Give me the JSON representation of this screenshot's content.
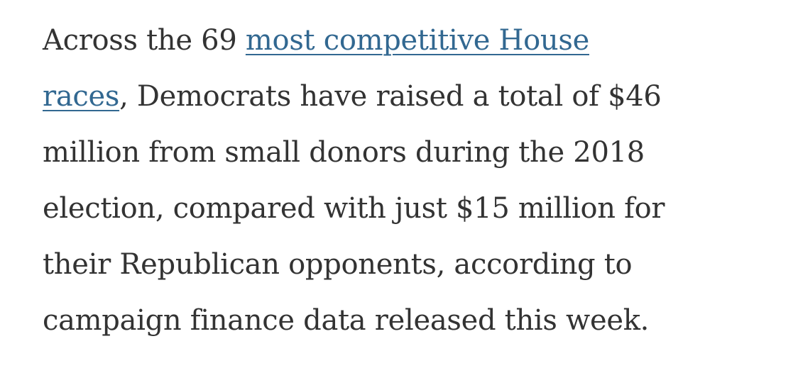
{
  "article": {
    "lines": [
      {
        "before": "Across the 69 ",
        "link": "most competitive House",
        "after": ""
      },
      {
        "before": "",
        "link": "races",
        "after": ", Democrats have raised a total of $46"
      },
      {
        "before": "million from small donors during the 2018",
        "link": "",
        "after": ""
      },
      {
        "before": "election, compared with just $15 million for",
        "link": "",
        "after": ""
      },
      {
        "before": "their Republican opponents, according to",
        "link": "",
        "after": ""
      },
      {
        "before": "campaign finance data released this week.",
        "link": "",
        "after": ""
      }
    ],
    "link_color": "#326891",
    "text_color": "#333333"
  }
}
